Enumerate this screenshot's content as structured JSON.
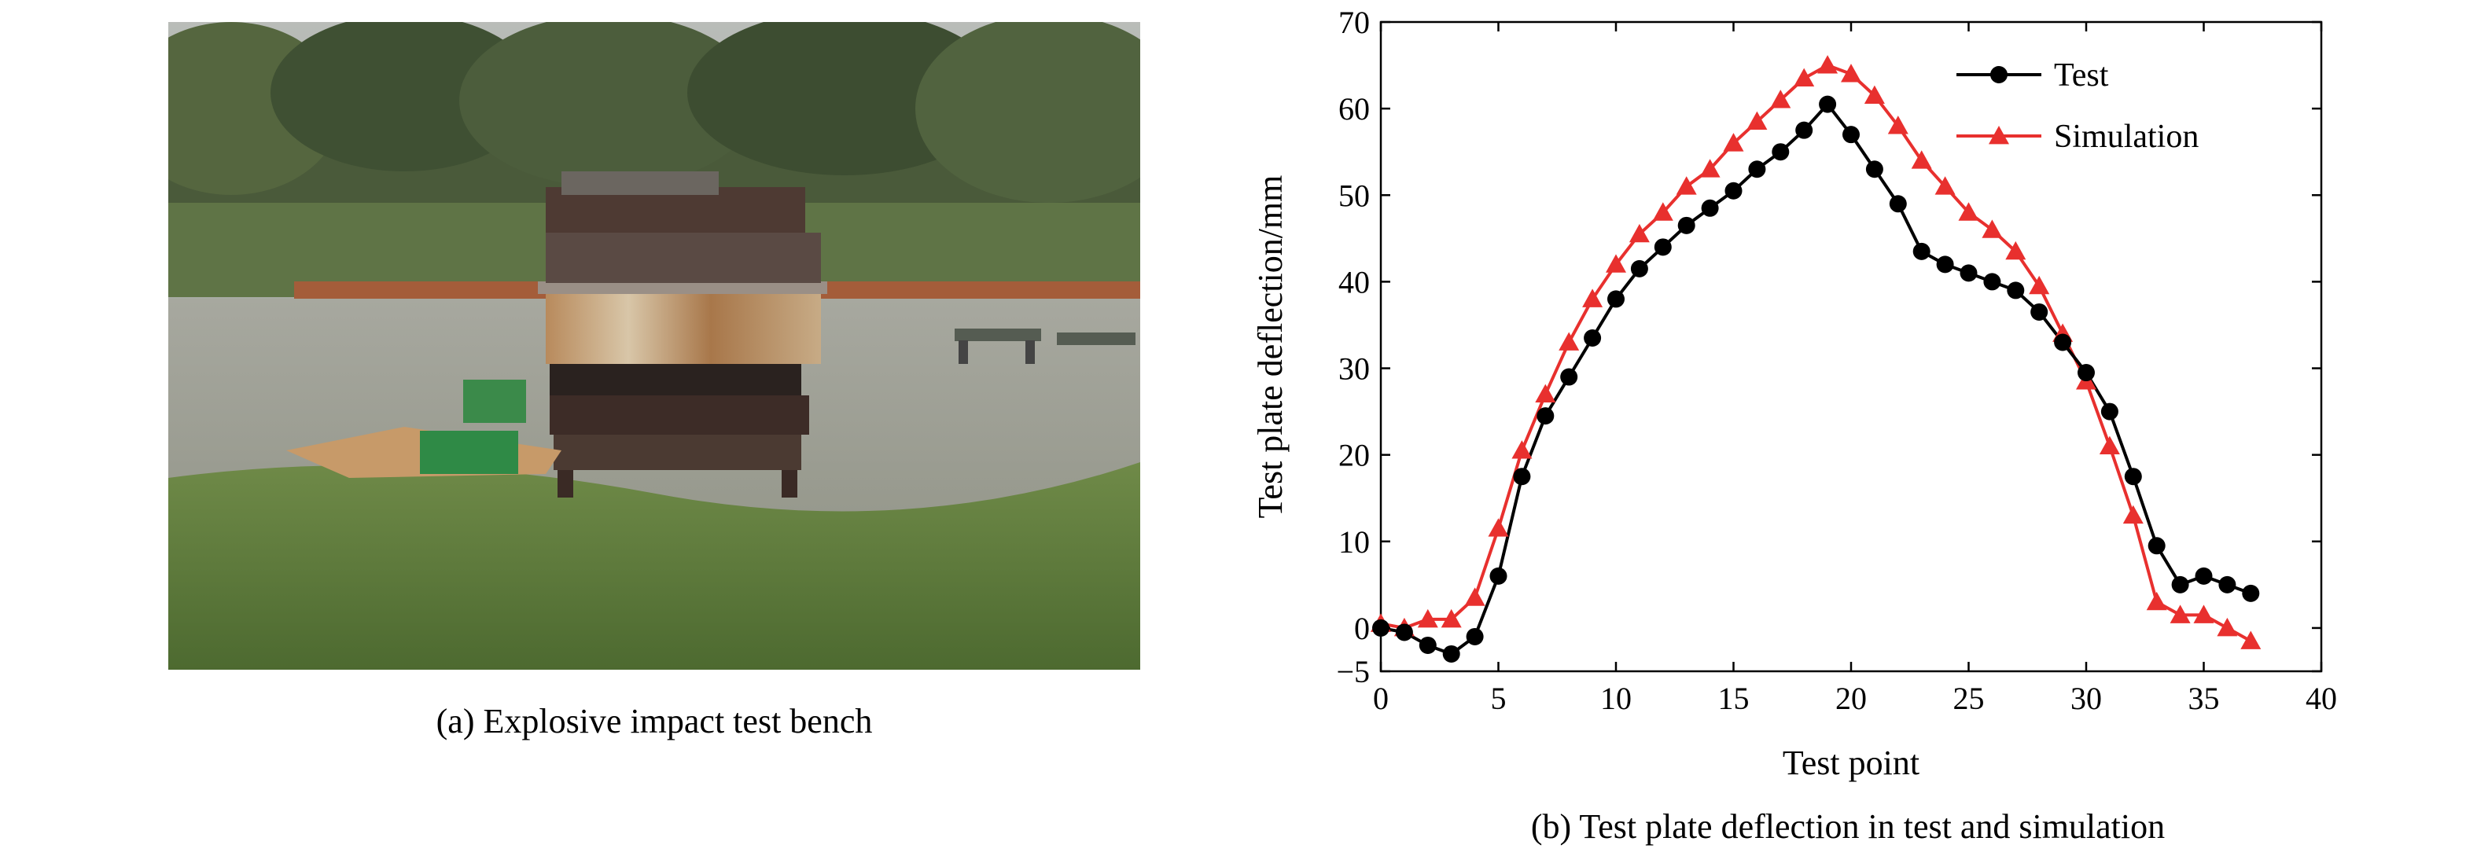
{
  "figure": {
    "caption_a": "(a) Explosive impact test bench",
    "caption_b": "(b) Test plate deflection in test and simulation"
  },
  "chart_data": {
    "type": "line",
    "xlabel": "Test point",
    "ylabel": "Test plate deflection/mm",
    "xlim": [
      0,
      40
    ],
    "ylim": [
      -5,
      70
    ],
    "xticks": [
      0,
      5,
      10,
      15,
      20,
      25,
      30,
      35,
      40
    ],
    "yticks": [
      -5,
      0,
      10,
      20,
      30,
      40,
      50,
      60,
      70
    ],
    "grid": false,
    "legend": "top-right",
    "series": [
      {
        "name": "Test",
        "color": "#000000",
        "marker": "circle",
        "x": [
          0,
          1,
          2,
          3,
          4,
          5,
          6,
          7,
          8,
          9,
          10,
          11,
          12,
          13,
          14,
          15,
          16,
          17,
          18,
          19,
          20,
          21,
          22,
          23,
          24,
          25,
          26,
          27,
          28,
          29,
          30,
          31,
          32,
          33,
          34,
          35,
          36,
          37
        ],
        "y": [
          0,
          -0.5,
          -2,
          -3,
          -1,
          6,
          17.5,
          24.5,
          29,
          33.5,
          38,
          41.5,
          44,
          46.5,
          48.5,
          50.5,
          53,
          55,
          57.5,
          60.5,
          57,
          53,
          49,
          43.5,
          42,
          41,
          40,
          39,
          36.5,
          33,
          29.5,
          25,
          17.5,
          9.5,
          5,
          6,
          5,
          4
        ]
      },
      {
        "name": "Simulation",
        "color": "#e8302e",
        "marker": "triangle",
        "x": [
          0,
          1,
          2,
          3,
          4,
          5,
          6,
          7,
          8,
          9,
          10,
          11,
          12,
          13,
          14,
          15,
          16,
          17,
          18,
          19,
          20,
          21,
          22,
          23,
          24,
          25,
          26,
          27,
          28,
          29,
          30,
          31,
          32,
          33,
          34,
          35,
          36,
          37
        ],
        "y": [
          0.5,
          0,
          1,
          1,
          3.5,
          11.5,
          20.5,
          27,
          33,
          38,
          42,
          45.5,
          48,
          51,
          53,
          56,
          58.5,
          61,
          63.5,
          65,
          64,
          61.5,
          58,
          54,
          51,
          48,
          46,
          43.5,
          39.5,
          34,
          28.5,
          21,
          13,
          3,
          1.5,
          1.5,
          0,
          -1.5
        ]
      }
    ]
  }
}
